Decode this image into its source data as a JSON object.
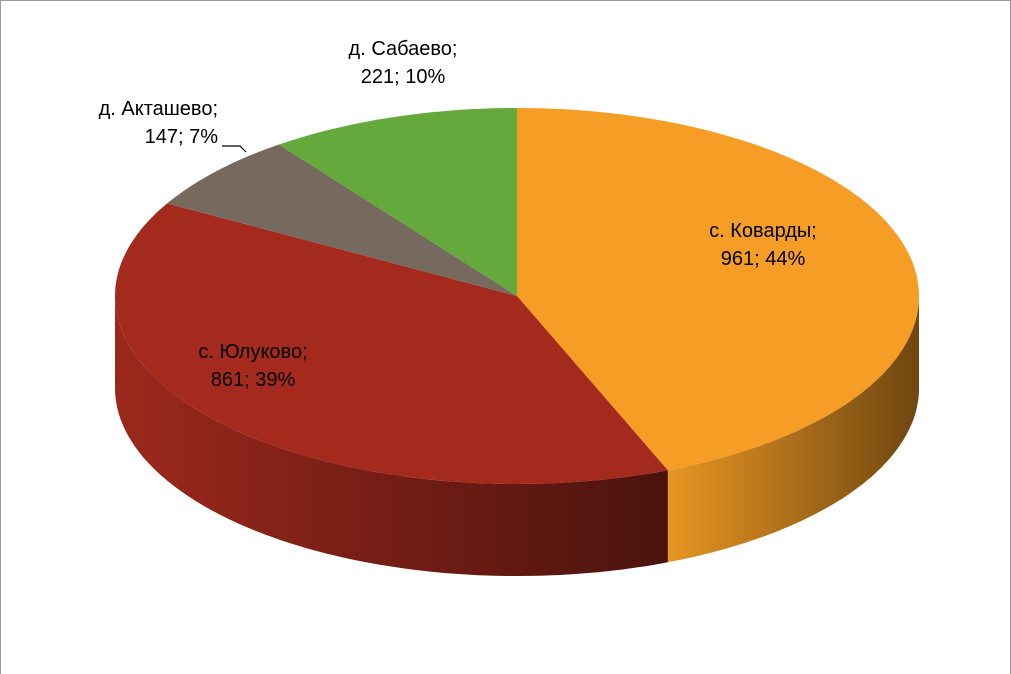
{
  "chart_data": {
    "type": "pie3d",
    "categories": [
      "с. Коварды;",
      "с. Юлуково;",
      "д. Акташево;",
      "д. Сабаево;"
    ],
    "values": [
      961,
      861,
      147,
      221
    ],
    "value_labels": [
      "961; 44%",
      "861; 39%",
      "147; 7%",
      "221; 10%"
    ],
    "colors": [
      "#f59d25",
      "#a52a1e",
      "#766a5e",
      "#65a83c"
    ]
  }
}
